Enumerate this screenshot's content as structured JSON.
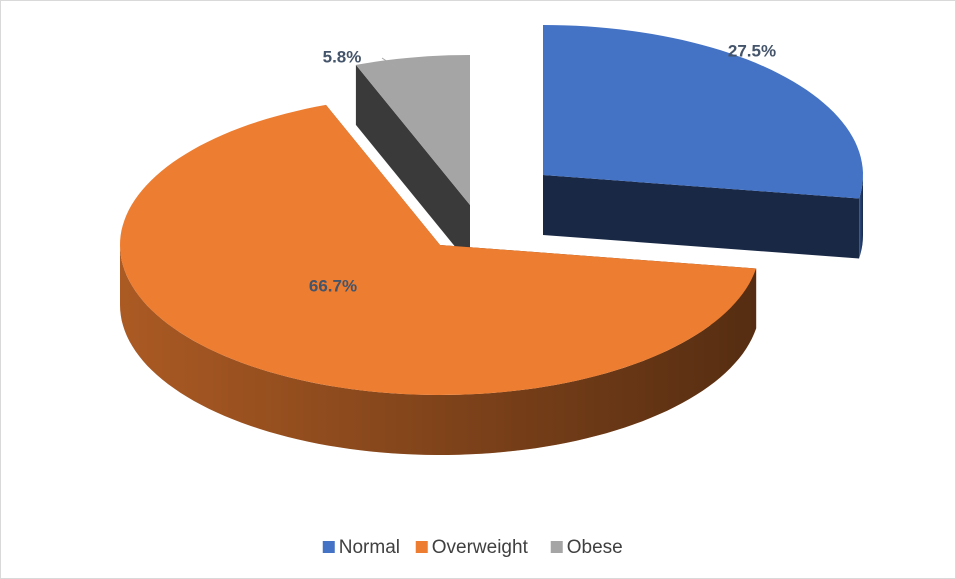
{
  "chart_data": {
    "type": "pie3d",
    "categories": [
      "Normal",
      "Overweight",
      "Obese"
    ],
    "values": [
      27.5,
      66.7,
      5.8
    ],
    "value_labels": [
      "27.5%",
      "66.7%",
      "5.8%"
    ],
    "colors": [
      "#4472c4",
      "#ed7d31",
      "#a5a5a5"
    ],
    "legend": "bottom"
  }
}
